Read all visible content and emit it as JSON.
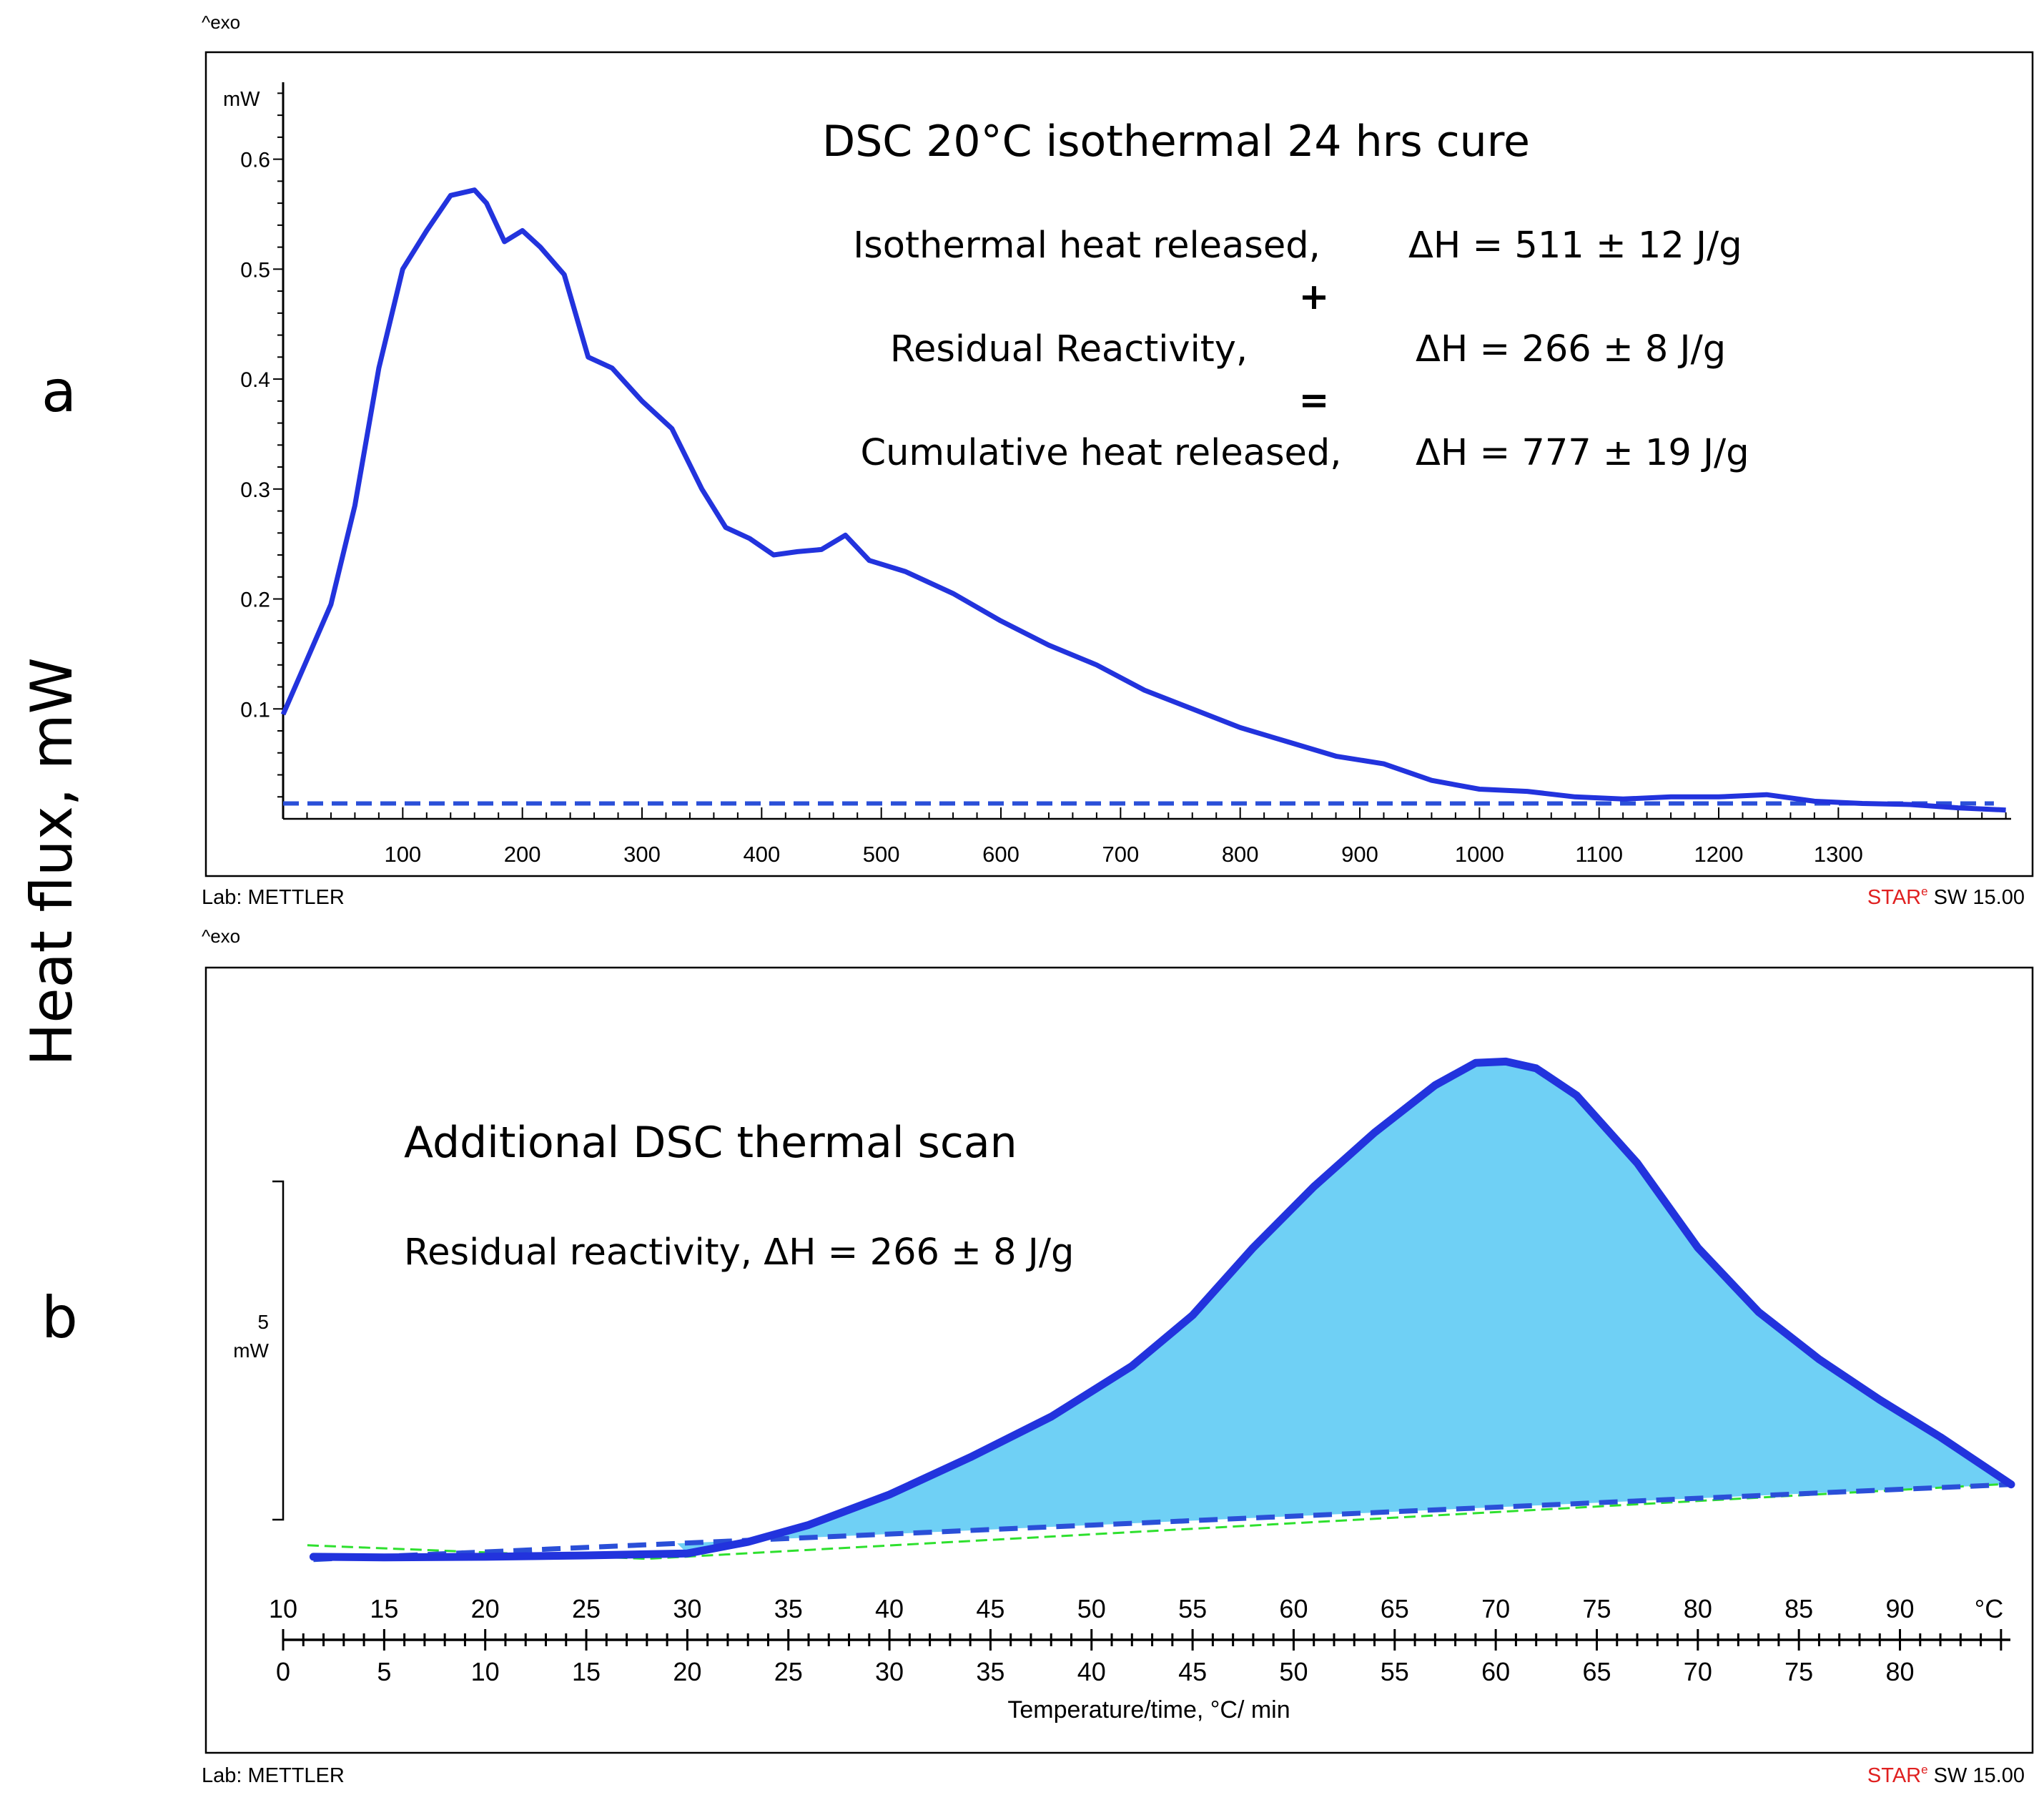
{
  "figure": {
    "y_axis_title": "Heat flux, mW",
    "panel_labels": [
      "a",
      "b"
    ]
  },
  "panel_a": {
    "exo_mark": "^exo",
    "unit": "mW",
    "heading": "DSC 20°C isothermal 24 hrs cure",
    "rows": [
      {
        "label": "Isothermal heat released,",
        "value": "ΔH = 511 ± 12 J/g"
      },
      {
        "op": "+"
      },
      {
        "label": "Residual Reactivity,",
        "value": "ΔH = 266 ± 8 J/g"
      },
      {
        "op": "="
      },
      {
        "label": "Cumulative heat released,",
        "value": "ΔH = 777 ±  19 J/g"
      }
    ],
    "footer_left": "Lab: METTLER",
    "footer_right_sup": "e",
    "footer_right_prefix": "STAR",
    "footer_right_suffix": " SW 15.00"
  },
  "panel_b": {
    "exo_mark": "^exo",
    "heading": "Additional DSC thermal scan",
    "subheading": "Residual reactivity, ΔH = 266 ±  8 J/g",
    "scale_value": "5",
    "scale_unit": "mW",
    "temp_unit": "°C",
    "xlabel": "Temperature/time, °C/ min",
    "footer_left": "Lab: METTLER",
    "footer_right_sup": "e",
    "footer_right_prefix": "STAR",
    "footer_right_suffix": " SW 15.00"
  },
  "colors": {
    "curve": "#2233dd",
    "fill": "#6fd0f5",
    "baseline_dash": "#2a4fd8",
    "guide_green": "#2ee02e",
    "star_red": "#e02020"
  },
  "chart_data": [
    {
      "type": "line",
      "title": "DSC 20°C isothermal 24 hrs cure",
      "xlabel": "",
      "ylabel": "mW",
      "xlim": [
        0,
        1445
      ],
      "ylim": [
        0,
        0.67
      ],
      "x_ticks": [
        100,
        200,
        300,
        400,
        500,
        600,
        700,
        800,
        900,
        1000,
        1100,
        1200,
        1300
      ],
      "y_ticks": [
        0.1,
        0.2,
        0.3,
        0.4,
        0.5,
        0.6
      ],
      "series": [
        {
          "name": "heat flow",
          "x": [
            0,
            20,
            40,
            60,
            80,
            100,
            120,
            140,
            160,
            170,
            185,
            200,
            215,
            235,
            255,
            275,
            300,
            325,
            350,
            370,
            390,
            410,
            430,
            450,
            470,
            490,
            520,
            560,
            600,
            640,
            680,
            720,
            760,
            800,
            840,
            880,
            920,
            960,
            1000,
            1040,
            1080,
            1120,
            1160,
            1200,
            1240,
            1280,
            1320,
            1360,
            1400,
            1440
          ],
          "y": [
            0.095,
            0.145,
            0.195,
            0.285,
            0.41,
            0.5,
            0.535,
            0.567,
            0.572,
            0.56,
            0.525,
            0.535,
            0.52,
            0.495,
            0.42,
            0.41,
            0.38,
            0.355,
            0.3,
            0.265,
            0.255,
            0.24,
            0.243,
            0.245,
            0.258,
            0.235,
            0.225,
            0.205,
            0.18,
            0.158,
            0.14,
            0.117,
            0.1,
            0.083,
            0.07,
            0.057,
            0.05,
            0.035,
            0.027,
            0.025,
            0.02,
            0.018,
            0.02,
            0.02,
            0.022,
            0.016,
            0.014,
            0.013,
            0.01,
            0.008
          ]
        },
        {
          "name": "baseline (dashed)",
          "x": [
            0,
            1430
          ],
          "y": [
            0.014,
            0.014
          ]
        }
      ]
    },
    {
      "type": "area",
      "title": "Additional DSC thermal scan",
      "xlabel": "Temperature/time, °C/ min",
      "ylabel": "mW",
      "xlim": [
        10,
        95.5
      ],
      "x_ticks_temperature": [
        10,
        15,
        20,
        25,
        30,
        35,
        40,
        45,
        50,
        55,
        60,
        65,
        70,
        75,
        80,
        85,
        90
      ],
      "x_ticks_time": [
        0,
        5,
        10,
        15,
        20,
        25,
        30,
        35,
        40,
        45,
        50,
        55,
        60,
        65,
        70,
        75,
        80
      ],
      "scale_bar_mW": 5,
      "series": [
        {
          "name": "heat flow",
          "x": [
            11.5,
            15,
            20,
            25,
            30,
            33,
            36,
            40,
            44,
            48,
            52,
            55,
            58,
            61,
            64,
            67,
            69,
            70.5,
            72,
            74,
            77,
            80,
            83,
            86,
            89,
            92,
            95.5
          ],
          "y": [
            -0.02,
            -0.03,
            -0.02,
            0.0,
            0.03,
            0.2,
            0.45,
            0.9,
            1.45,
            2.05,
            2.8,
            3.55,
            4.55,
            5.45,
            6.25,
            6.95,
            7.28,
            7.3,
            7.2,
            6.8,
            5.8,
            4.55,
            3.6,
            2.9,
            2.3,
            1.75,
            1.05
          ]
        },
        {
          "name": "integration baseline (dashed)",
          "x": [
            11.5,
            95.5
          ],
          "y": [
            -0.06,
            1.05
          ]
        }
      ]
    }
  ]
}
